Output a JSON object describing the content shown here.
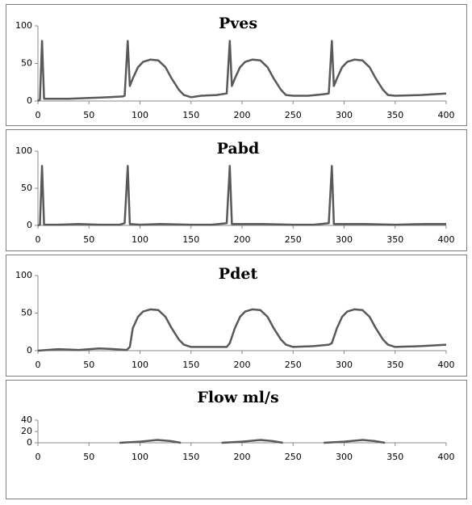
{
  "chart_data": [
    {
      "type": "line",
      "title": "Pves",
      "color": "#595959",
      "x": [
        0,
        2,
        4,
        6,
        10,
        30,
        50,
        70,
        83,
        85,
        88,
        90,
        93,
        98,
        103,
        110,
        118,
        125,
        131,
        138,
        143,
        150,
        160,
        175,
        185,
        188,
        190,
        193,
        198,
        203,
        210,
        218,
        225,
        231,
        238,
        243,
        250,
        265,
        280,
        285,
        288,
        290,
        293,
        298,
        303,
        310,
        318,
        325,
        331,
        338,
        343,
        350,
        375,
        400
      ],
      "values": [
        0,
        2,
        80,
        3,
        3,
        3,
        4,
        5,
        6,
        7,
        80,
        20,
        30,
        45,
        52,
        55,
        54,
        45,
        30,
        15,
        8,
        5,
        7,
        8,
        10,
        80,
        20,
        30,
        45,
        52,
        55,
        54,
        45,
        30,
        15,
        8,
        7,
        7,
        9,
        10,
        80,
        20,
        30,
        45,
        52,
        55,
        54,
        45,
        30,
        15,
        8,
        7,
        8,
        10
      ],
      "xlim": [
        0,
        400
      ],
      "xticks": [
        0,
        50,
        100,
        150,
        200,
        250,
        300,
        350,
        400
      ],
      "ylim": [
        0,
        100
      ],
      "yticks": [
        0,
        50,
        100
      ]
    },
    {
      "type": "line",
      "title": "Pabd",
      "color": "#595959",
      "x": [
        0,
        2,
        4,
        6,
        20,
        40,
        60,
        80,
        85,
        88,
        90,
        100,
        120,
        150,
        170,
        185,
        188,
        190,
        220,
        250,
        270,
        285,
        288,
        290,
        320,
        350,
        380,
        400
      ],
      "values": [
        0,
        1,
        80,
        1,
        1,
        2,
        1,
        1,
        3,
        80,
        2,
        1,
        2,
        1,
        1,
        3,
        80,
        2,
        2,
        1,
        1,
        3,
        80,
        2,
        2,
        1,
        2,
        2
      ],
      "xlim": [
        0,
        400
      ],
      "xticks": [
        0,
        50,
        100,
        150,
        200,
        250,
        300,
        350,
        400
      ],
      "ylim": [
        0,
        100
      ],
      "yticks": [
        0,
        50,
        100
      ]
    },
    {
      "type": "line",
      "title": "Pdet",
      "color": "#595959",
      "x": [
        0,
        20,
        40,
        60,
        75,
        87,
        90,
        93,
        98,
        103,
        110,
        118,
        125,
        131,
        138,
        143,
        150,
        170,
        185,
        188,
        193,
        198,
        203,
        210,
        218,
        225,
        231,
        238,
        243,
        250,
        270,
        285,
        288,
        293,
        298,
        303,
        310,
        318,
        325,
        331,
        338,
        343,
        350,
        375,
        400
      ],
      "values": [
        0,
        2,
        1,
        3,
        2,
        1,
        5,
        30,
        45,
        52,
        55,
        54,
        45,
        30,
        15,
        8,
        5,
        5,
        5,
        10,
        30,
        45,
        52,
        55,
        54,
        45,
        30,
        15,
        8,
        5,
        6,
        8,
        10,
        30,
        45,
        52,
        55,
        54,
        45,
        30,
        15,
        8,
        5,
        6,
        8
      ],
      "xlim": [
        0,
        400
      ],
      "xticks": [
        0,
        50,
        100,
        150,
        200,
        250,
        300,
        350,
        400
      ],
      "ylim": [
        0,
        100
      ],
      "yticks": [
        0,
        50,
        100
      ]
    },
    {
      "type": "line",
      "title": "Flow ml/s",
      "color": "#595959",
      "x": [
        80,
        100,
        117,
        130,
        140,
        160,
        180,
        200,
        218,
        230,
        240,
        260,
        280,
        300,
        318,
        330,
        340
      ],
      "values": [
        0,
        2,
        5,
        3,
        0,
        null,
        0,
        2,
        5,
        3,
        0,
        null,
        0,
        2,
        5,
        3,
        0
      ],
      "xlim": [
        0,
        400
      ],
      "xticks": [
        0,
        50,
        100,
        150,
        200,
        250,
        300,
        350,
        400
      ],
      "ylim": [
        0,
        40
      ],
      "yticks": [
        0,
        20,
        40
      ]
    }
  ]
}
